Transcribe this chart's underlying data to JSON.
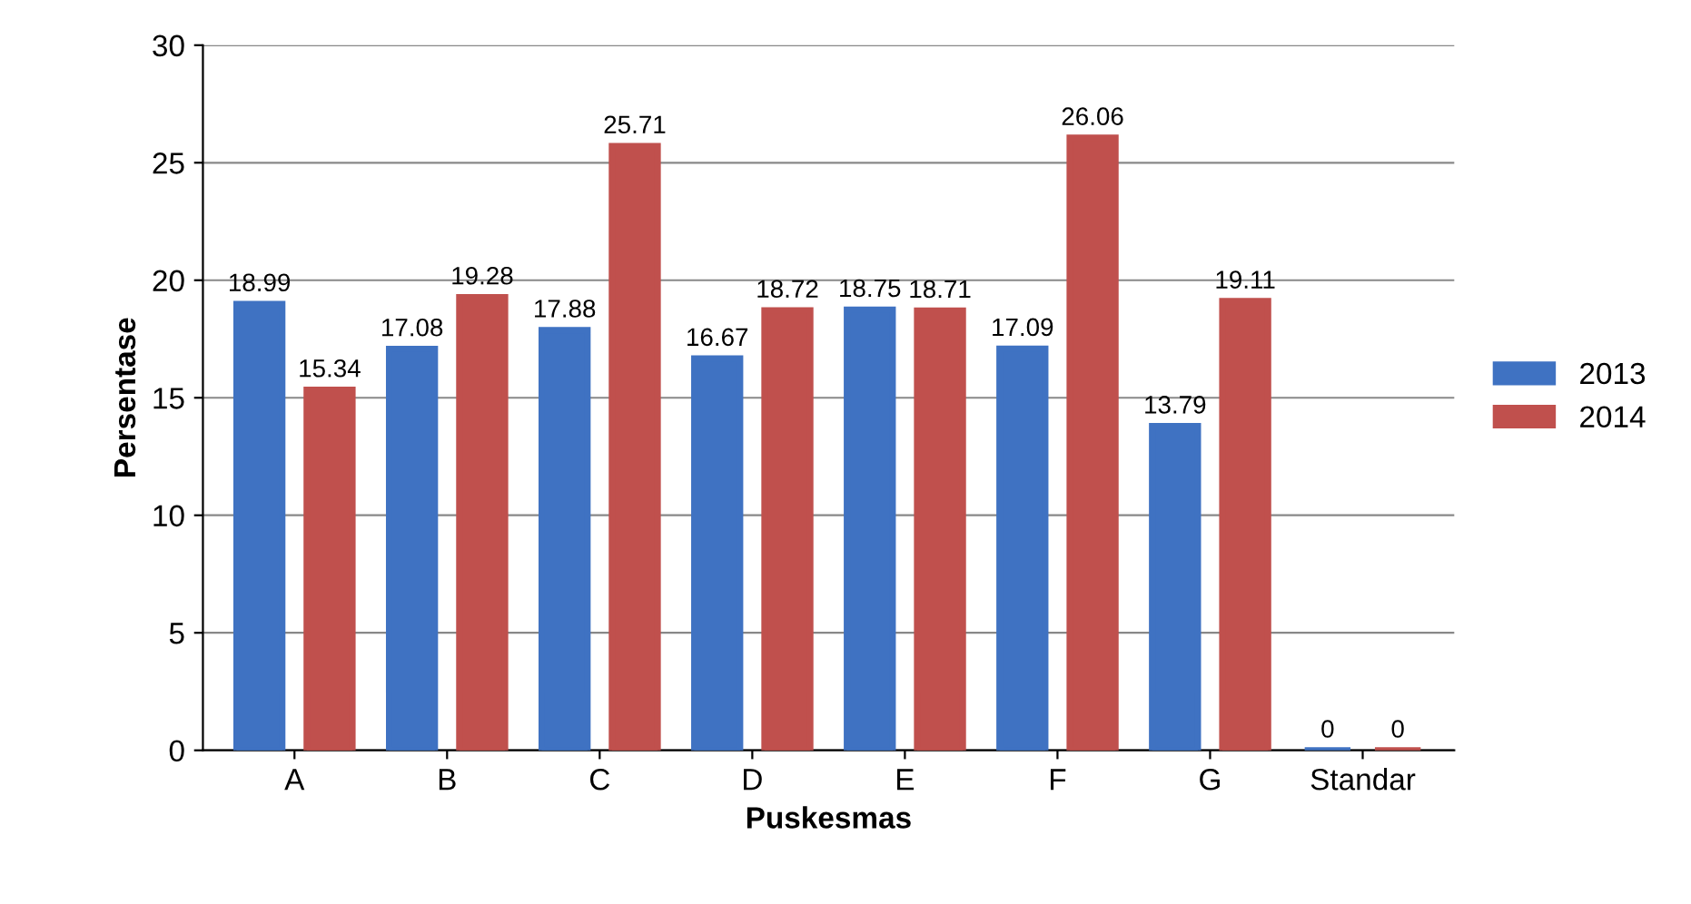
{
  "chart_data": {
    "type": "bar",
    "xlabel": "Puskesmas",
    "ylabel": "Persentase",
    "categories": [
      "A",
      "B",
      "C",
      "D",
      "E",
      "F",
      "G",
      "Standar"
    ],
    "series": [
      {
        "name": "2013",
        "color": "#3f72c2",
        "values": [
          18.99,
          17.08,
          17.88,
          16.67,
          18.75,
          17.09,
          13.79,
          0
        ]
      },
      {
        "name": "2014",
        "color": "#c0504d",
        "values": [
          15.34,
          19.28,
          25.71,
          18.72,
          18.71,
          26.06,
          19.11,
          0
        ]
      }
    ],
    "ylim": [
      0,
      30
    ],
    "yticks": [
      0,
      5,
      10,
      15,
      20,
      25,
      30
    ],
    "grid": "y",
    "legend": "right",
    "data_labels": true
  }
}
